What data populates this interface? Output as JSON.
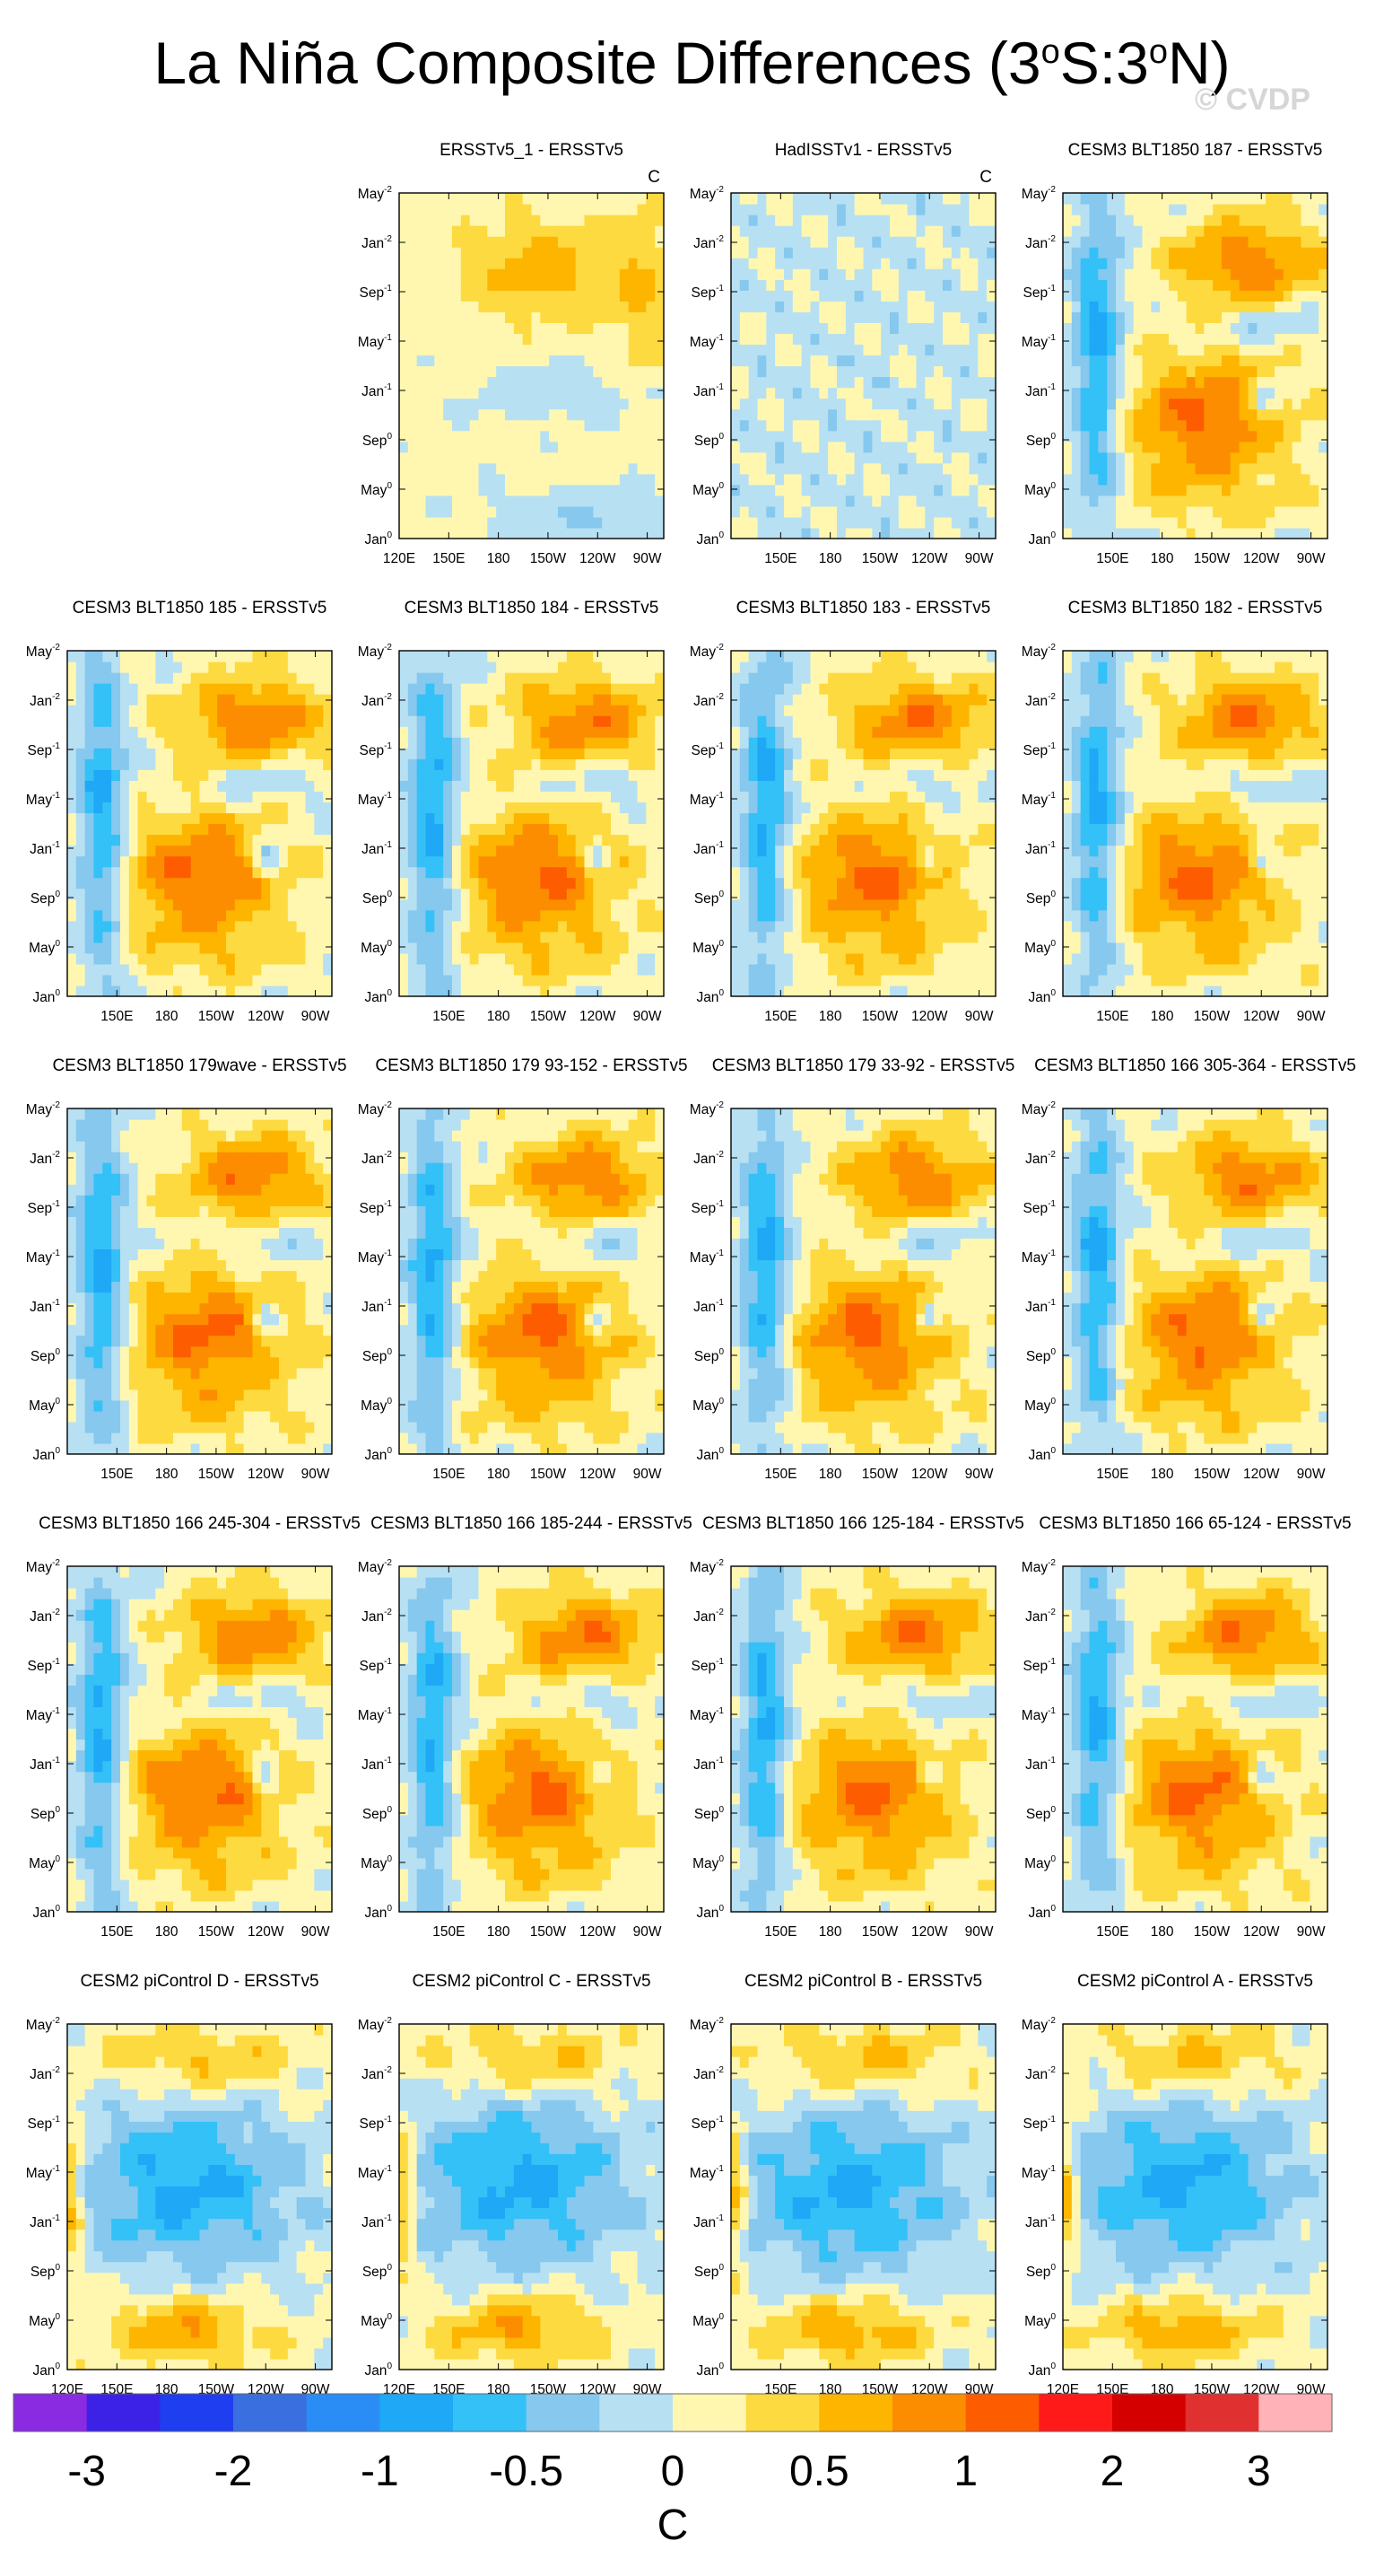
{
  "header": {
    "title_prefix": "La Niña Composite Differences (3",
    "title_mid": "S:3",
    "title_suffix": "N)",
    "title_sup": "o",
    "watermark": "© CVDP"
  },
  "chart_data": {
    "type": "heatmap",
    "panel_units_label": "C",
    "y_tick_labels": [
      {
        "base": "May",
        "sup": "-2"
      },
      {
        "base": "Jan",
        "sup": "-2"
      },
      {
        "base": "Sep",
        "sup": "-1"
      },
      {
        "base": "May",
        "sup": "-1"
      },
      {
        "base": "Jan",
        "sup": "-1"
      },
      {
        "base": "Sep",
        "sup": "0"
      },
      {
        "base": "May",
        "sup": "0"
      },
      {
        "base": "Jan",
        "sup": "0"
      }
    ],
    "x_tick_labels": [
      "150E",
      "180",
      "150W",
      "120W",
      "90W"
    ],
    "x_edge_label": "120E",
    "panels": [
      {
        "title": "ERSSTv5_1 - ERSSTv5",
        "units": "C",
        "edge": true,
        "pattern": "obs"
      },
      {
        "title": "HadISSTv1 - ERSSTv5",
        "units": "C",
        "edge": false,
        "pattern": "had"
      },
      {
        "title": "CESM3 BLT1850 187 - ERSSTv5",
        "edge": false,
        "pattern": "blt"
      },
      {
        "title": "CESM3 BLT1850 185 - ERSSTv5",
        "edge": false,
        "pattern": "blt"
      },
      {
        "title": "CESM3 BLT1850 184 - ERSSTv5",
        "edge": false,
        "pattern": "blt"
      },
      {
        "title": "CESM3 BLT1850 183 - ERSSTv5",
        "edge": false,
        "pattern": "blt"
      },
      {
        "title": "CESM3 BLT1850 182 - ERSSTv5",
        "edge": false,
        "pattern": "blt"
      },
      {
        "title": "CESM3 BLT1850 179wave - ERSSTv5",
        "edge": false,
        "pattern": "blt"
      },
      {
        "title": "CESM3 BLT1850 179 93-152 - ERSSTv5",
        "edge": false,
        "pattern": "blt"
      },
      {
        "title": "CESM3 BLT1850 179 33-92 - ERSSTv5",
        "edge": false,
        "pattern": "blt"
      },
      {
        "title": "CESM3 BLT1850 166 305-364 - ERSSTv5",
        "edge": false,
        "pattern": "blt"
      },
      {
        "title": "CESM3 BLT1850 166 245-304 - ERSSTv5",
        "edge": false,
        "pattern": "blt"
      },
      {
        "title": "CESM3 BLT1850 166 185-244 - ERSSTv5",
        "edge": false,
        "pattern": "blt"
      },
      {
        "title": "CESM3 BLT1850 166 125-184 - ERSSTv5",
        "edge": false,
        "pattern": "blt"
      },
      {
        "title": "CESM3 BLT1850 166 65-124 - ERSSTv5",
        "edge": false,
        "pattern": "blt"
      },
      {
        "title": "CESM2 piControl D - ERSSTv5",
        "edge": true,
        "pattern": "pic"
      },
      {
        "title": "CESM2 piControl C - ERSSTv5",
        "edge": true,
        "pattern": "pic"
      },
      {
        "title": "CESM2 piControl B - ERSSTv5",
        "edge": false,
        "pattern": "pic"
      },
      {
        "title": "CESM2 piControl A - ERSSTv5",
        "edge": true,
        "pattern": "pic"
      }
    ],
    "colorbar": {
      "levels": [
        -3,
        -2.5,
        -2,
        -1.5,
        -1,
        -0.75,
        -0.5,
        -0.25,
        0,
        0.25,
        0.5,
        0.75,
        1,
        1.5,
        2,
        2.5,
        3
      ],
      "colors": [
        "#8a2be2",
        "#3c22e6",
        "#1e3ef0",
        "#3a6fe0",
        "#2a8df5",
        "#1ea8f5",
        "#33c1f7",
        "#86c8ee",
        "#b7e0f3",
        "#fff7b0",
        "#fdda40",
        "#fdb500",
        "#fd8d00",
        "#fd5d00",
        "#ff1a1a",
        "#d40000",
        "#e03030",
        "#ffb2b8"
      ],
      "labels": [
        {
          "text": "-3",
          "value": -3
        },
        {
          "text": "-2",
          "value": -2
        },
        {
          "text": "-1",
          "value": -1
        },
        {
          "text": "-0.5",
          "value": -0.5
        },
        {
          "text": "0",
          "value": 0
        },
        {
          "text": "0.5",
          "value": 0.5
        },
        {
          "text": "1",
          "value": 1
        },
        {
          "text": "2",
          "value": 2
        },
        {
          "text": "3",
          "value": 3
        }
      ],
      "unit_label": "C"
    }
  }
}
